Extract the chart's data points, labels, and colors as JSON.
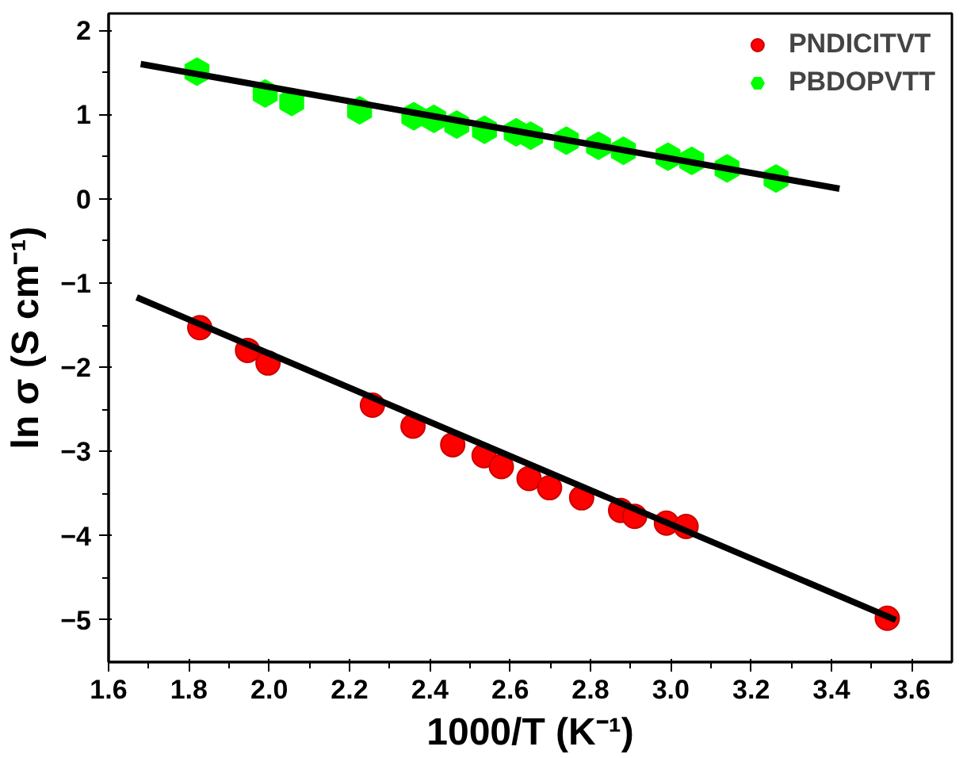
{
  "chart_data": {
    "type": "scatter",
    "xlabel": "1000/T (K⁻¹)",
    "ylabel": "ln σ (S cm⁻¹)",
    "xlim": [
      1.6,
      3.7
    ],
    "ylim": [
      -5.5,
      2.2
    ],
    "xticks": [
      {
        "value": 1.6,
        "label": "1.6"
      },
      {
        "value": 1.8,
        "label": "1.8"
      },
      {
        "value": 2.0,
        "label": "2.0"
      },
      {
        "value": 2.2,
        "label": "2.2"
      },
      {
        "value": 2.4,
        "label": "2.4"
      },
      {
        "value": 2.6,
        "label": "2.6"
      },
      {
        "value": 2.8,
        "label": "2.8"
      },
      {
        "value": 3.0,
        "label": "3.0"
      },
      {
        "value": 3.2,
        "label": "3.2"
      },
      {
        "value": 3.4,
        "label": "3.4"
      },
      {
        "value": 3.6,
        "label": "3.6"
      }
    ],
    "yticks": [
      -5,
      -4,
      -3,
      -2,
      -1,
      0,
      1,
      2
    ],
    "grid": false,
    "legend": "top right",
    "series": [
      {
        "name": "PNDICITVT",
        "color": "#ff0000",
        "marker": "circle",
        "x": [
          1.827,
          1.946,
          1.997,
          2.257,
          2.358,
          2.457,
          2.535,
          2.578,
          2.647,
          2.698,
          2.778,
          2.875,
          2.91,
          2.989,
          3.038,
          3.539
        ],
        "values": [
          -1.53,
          -1.8,
          -1.95,
          -2.45,
          -2.7,
          -2.92,
          -3.05,
          -3.18,
          -3.32,
          -3.43,
          -3.55,
          -3.7,
          -3.77,
          -3.85,
          -3.89,
          -4.98
        ]
      },
      {
        "name": "PBDOPVTT",
        "color": "#00ff00",
        "x": [
          1.82,
          1.99,
          2.056,
          2.225,
          2.36,
          2.41,
          2.467,
          2.536,
          2.615,
          2.651,
          2.74,
          2.82,
          2.882,
          2.993,
          3.052,
          3.14,
          3.262
        ],
        "values": [
          1.51,
          1.25,
          1.15,
          1.05,
          0.98,
          0.95,
          0.88,
          0.82,
          0.79,
          0.75,
          0.69,
          0.63,
          0.57,
          0.5,
          0.45,
          0.36,
          0.24
        ]
      },
      {
        "type": "line",
        "color": "#000000",
        "x": [
          1.67,
          3.56
        ],
        "values": [
          -1.17,
          -5.0
        ]
      },
      {
        "type": "line",
        "color": "#000000",
        "x": [
          1.68,
          3.42
        ],
        "values": [
          1.6,
          0.12
        ]
      }
    ]
  }
}
